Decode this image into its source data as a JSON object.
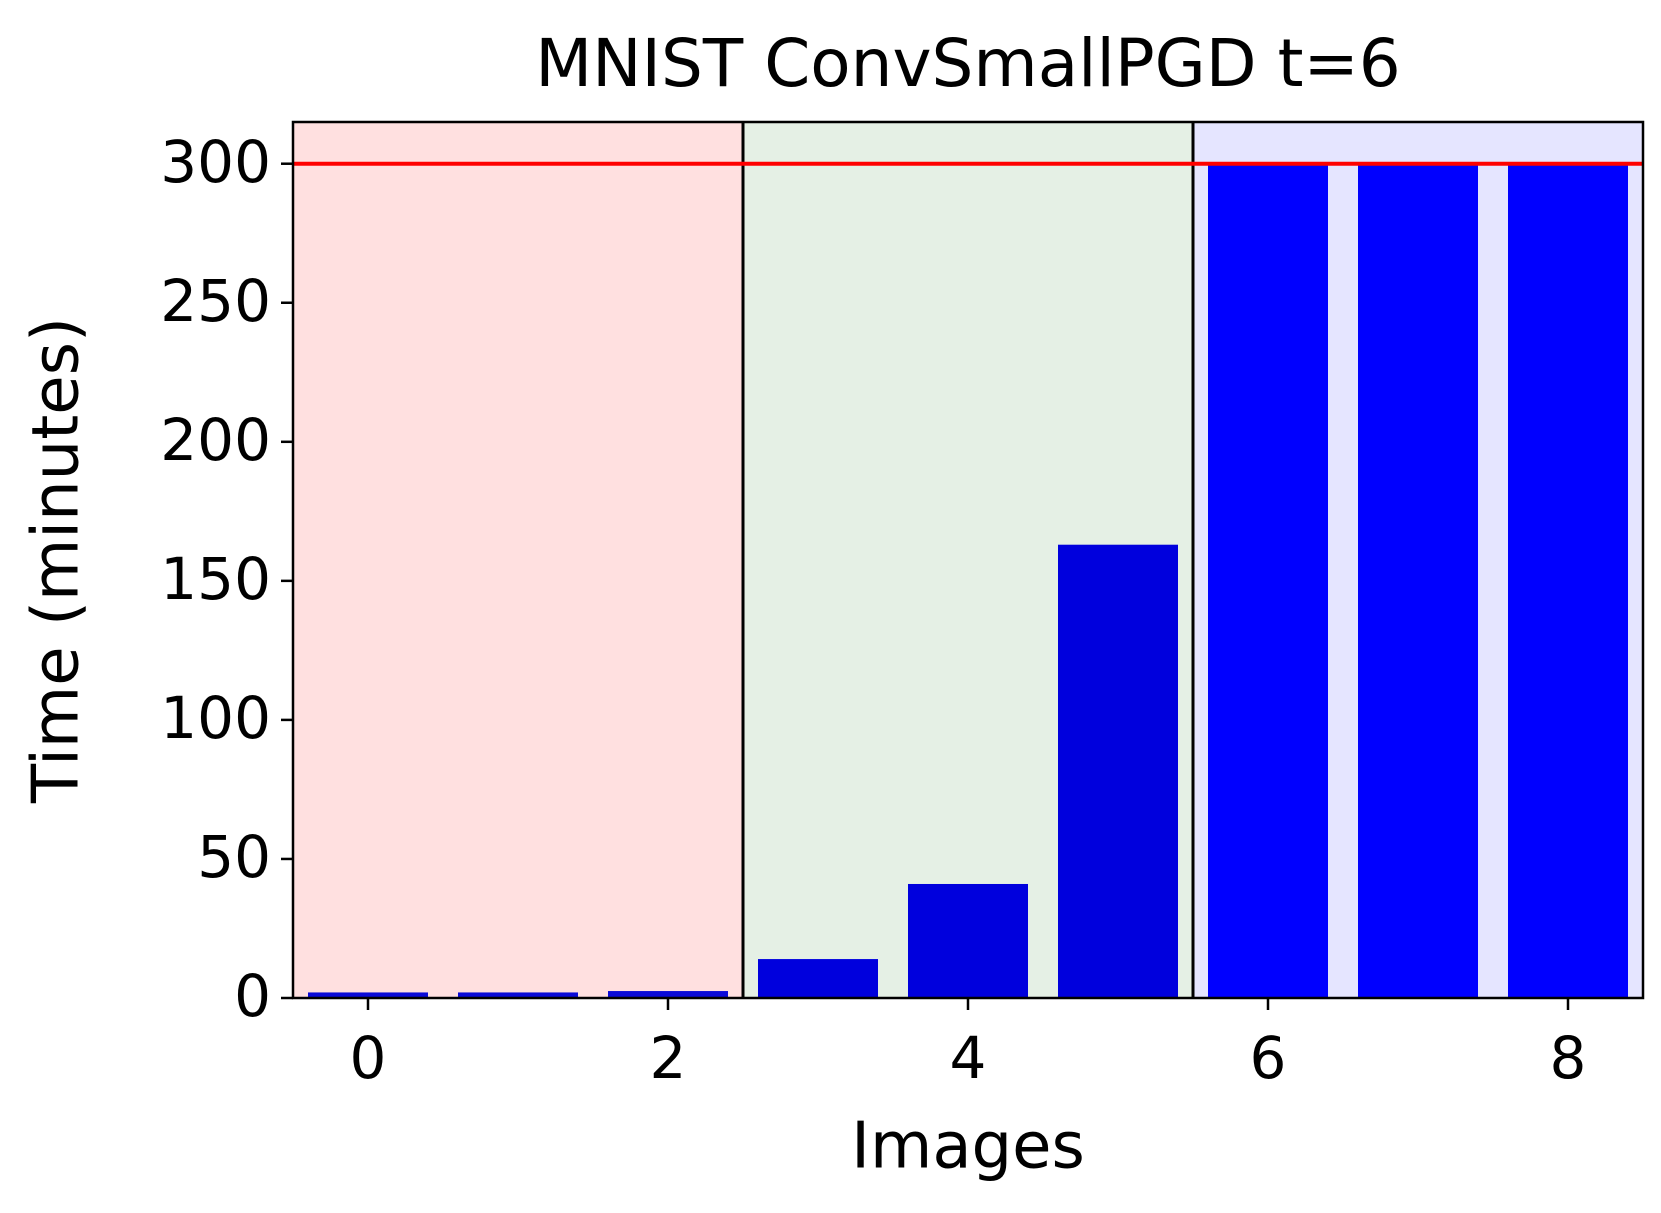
{
  "chart_data": {
    "type": "bar",
    "title": "MNIST ConvSmallPGD t=6",
    "xlabel": "Images",
    "ylabel": "Time (minutes)",
    "x": [
      0,
      1,
      2,
      3,
      4,
      5,
      6,
      7,
      8
    ],
    "values": [
      2,
      2,
      2.5,
      14,
      41,
      163,
      300,
      300,
      300
    ],
    "colors": [
      "#0a0ad8",
      "#0a0ad8",
      "#0a0ad8",
      "#0000dd",
      "#0000dd",
      "#0000dd",
      "#0000ff",
      "#0000ff",
      "#0000ff"
    ],
    "bar_width": 0.8,
    "xlim": [
      -0.5,
      8.5
    ],
    "ylim": [
      0,
      315
    ],
    "xticks": [
      0,
      2,
      4,
      6,
      8
    ],
    "yticks": [
      0,
      50,
      100,
      150,
      200,
      250,
      300
    ],
    "spans": [
      {
        "x": [
          -0.5,
          2.5
        ],
        "color": "#ffe0e0"
      },
      {
        "x": [
          2.5,
          5.5
        ],
        "color": "#e5f0e5"
      },
      {
        "x": [
          5.5,
          8.5
        ],
        "color": "#e5e5ff"
      }
    ],
    "vlines": [
      2.5,
      5.5
    ],
    "vline_color": "#000000",
    "hline": 300,
    "hline_color": "#ff0000",
    "grid": false
  }
}
